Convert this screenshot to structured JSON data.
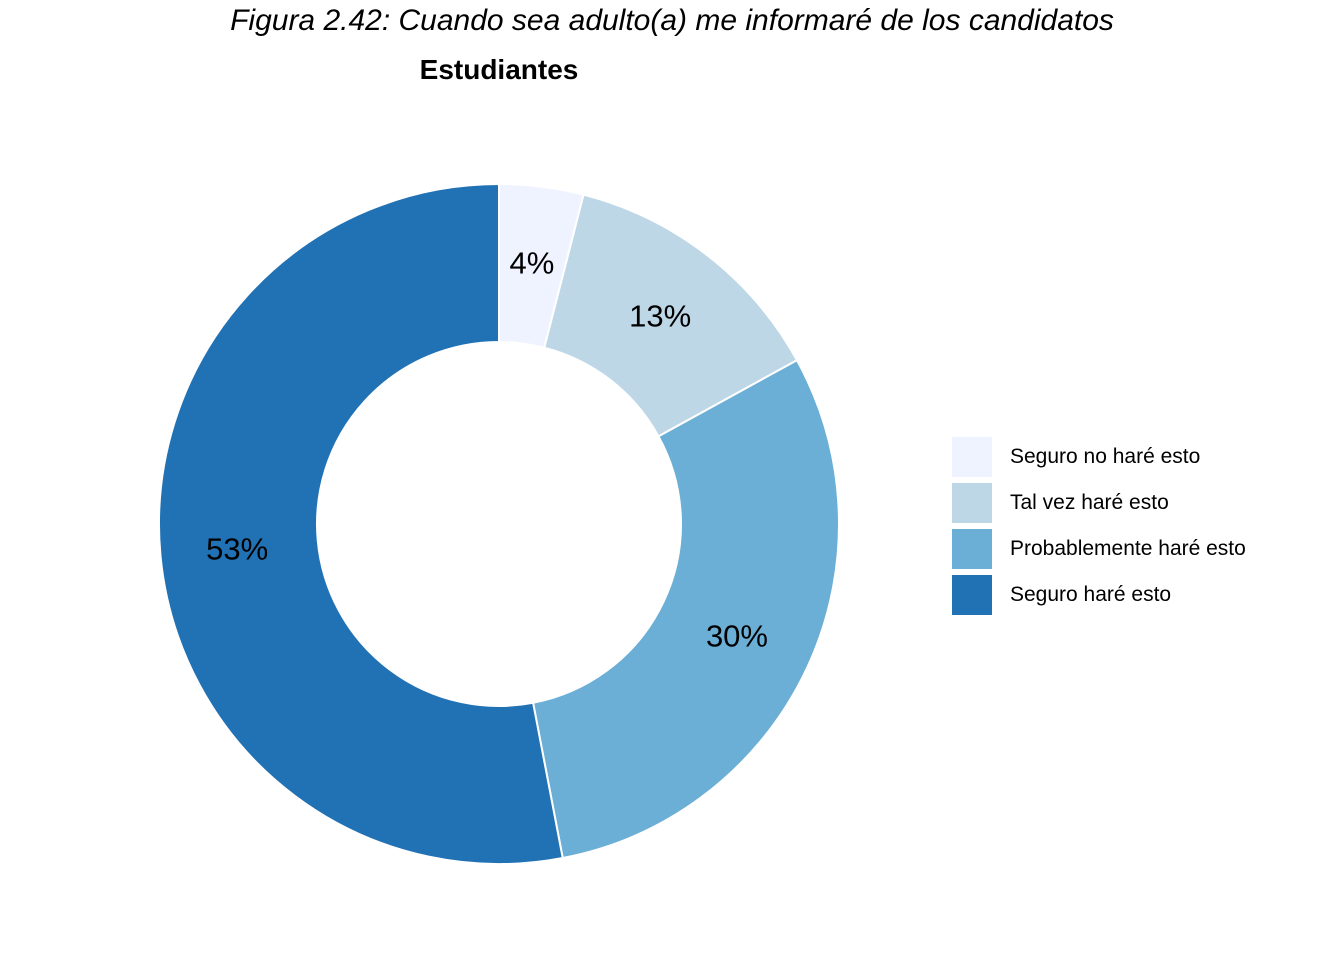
{
  "figure_title": "Figura 2.42:  Cuando sea adulto(a) me informaré de los candidatos",
  "chart_data": {
    "type": "pie",
    "variant": "donut",
    "title": "Estudiantes",
    "categories": [
      "Seguro no haré esto",
      "Tal vez haré esto",
      "Probablemente haré esto",
      "Seguro haré esto"
    ],
    "values": [
      4,
      13,
      30,
      53
    ],
    "labels": [
      "4%",
      "13%",
      "30%",
      "53%"
    ],
    "colors": [
      "#eff3ff",
      "#bdd7e7",
      "#6baed6",
      "#2171b5"
    ],
    "start_angle": "12 o'clock",
    "direction": "clockwise",
    "legend_position": "right"
  }
}
